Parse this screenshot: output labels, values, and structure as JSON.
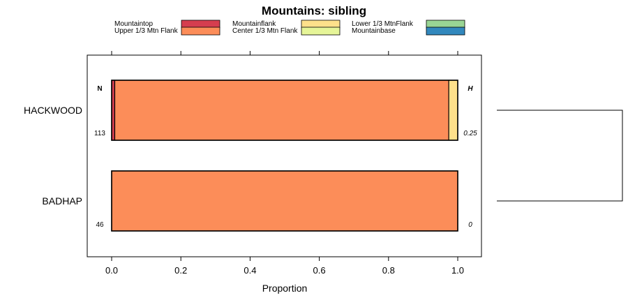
{
  "chart_data": {
    "type": "bar",
    "orientation": "horizontal",
    "stacked": true,
    "title": "Mountains: sibling",
    "xlabel": "Proportion",
    "ylabel": "",
    "xlim": [
      -0.07,
      1.07
    ],
    "x_ticks": [
      "0.0",
      "0.2",
      "0.4",
      "0.6",
      "0.8",
      "1.0"
    ],
    "categories": [
      "HACKWOOD",
      "BADHAP"
    ],
    "left_column_header": "N",
    "right_column_header": "H",
    "n_values": [
      "113",
      "46"
    ],
    "h_values": [
      "0.25",
      "0"
    ],
    "legend_placement": "top",
    "series": [
      {
        "name": "Mountaintop",
        "color": "#D53E4F",
        "values": [
          0.009,
          0
        ]
      },
      {
        "name": "Upper 1/3 Mtn Flank",
        "color": "#FC8D59",
        "values": [
          0.965,
          1.0
        ]
      },
      {
        "name": "Mountainflank",
        "color": "#FEE08B",
        "values": [
          0.026,
          0
        ]
      },
      {
        "name": "Center 1/3 Mtn Flank",
        "color": "#E6F598",
        "values": [
          0,
          0
        ]
      },
      {
        "name": "Lower 1/3 MtnFlank",
        "color": "#99D594",
        "values": [
          0,
          0
        ]
      },
      {
        "name": "Mountainbase",
        "color": "#3288BD",
        "values": [
          0,
          0
        ]
      }
    ],
    "dendrogram": true
  }
}
